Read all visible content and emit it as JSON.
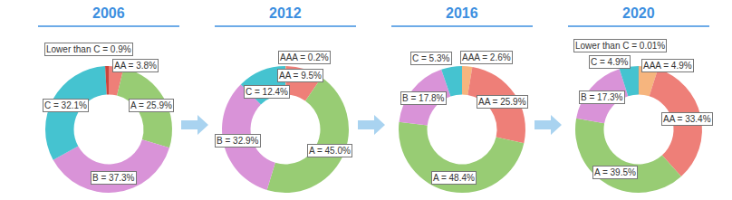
{
  "chart_data": [
    {
      "type": "donut",
      "title": "2006",
      "categories": [
        "AA",
        "A",
        "B",
        "C",
        "Lower than C"
      ],
      "values": [
        3.8,
        25.9,
        37.3,
        32.1,
        0.9
      ],
      "value_labels": [
        "AA = 3.8%",
        "A = 25.9%",
        "B = 37.3%",
        "C = 32.1%",
        "Lower than C = 0.9%"
      ],
      "colors": [
        "#ee7f78",
        "#98cc74",
        "#d993d8",
        "#45c3d0",
        "#c9463d"
      ],
      "data_labels": true
    },
    {
      "type": "donut",
      "title": "2012",
      "categories": [
        "AAA",
        "AA",
        "A",
        "B",
        "C"
      ],
      "values": [
        0.2,
        9.5,
        45.0,
        32.9,
        12.4
      ],
      "value_labels": [
        "AAA = 0.2%",
        "AA = 9.5%",
        "A = 45.0%",
        "B = 32.9%",
        "C = 12.4%"
      ],
      "colors": [
        "#f6b57e",
        "#ee7f78",
        "#98cc74",
        "#d993d8",
        "#45c3d0"
      ],
      "data_labels": true
    },
    {
      "type": "donut",
      "title": "2016",
      "categories": [
        "AAA",
        "AA",
        "A",
        "B",
        "C"
      ],
      "values": [
        2.6,
        25.9,
        48.4,
        17.8,
        5.3
      ],
      "value_labels": [
        "AAA = 2.6%",
        "AA = 25.9%",
        "A = 48.4%",
        "B = 17.8%",
        "C = 5.3%"
      ],
      "colors": [
        "#f6b57e",
        "#ee7f78",
        "#98cc74",
        "#d993d8",
        "#45c3d0"
      ],
      "data_labels": true
    },
    {
      "type": "donut",
      "title": "2020",
      "categories": [
        "AAA",
        "AA",
        "A",
        "B",
        "C",
        "Lower than C"
      ],
      "values": [
        4.9,
        33.4,
        39.5,
        17.3,
        4.9,
        0.01
      ],
      "value_labels": [
        "AAA = 4.9%",
        "AA = 33.4%",
        "A = 39.5%",
        "B = 17.3%",
        "C = 4.9%",
        "Lower than C = 0.01%"
      ],
      "colors": [
        "#f6b57e",
        "#ee7f78",
        "#98cc74",
        "#d993d8",
        "#45c3d0",
        "#c9463d"
      ],
      "data_labels": true
    }
  ]
}
